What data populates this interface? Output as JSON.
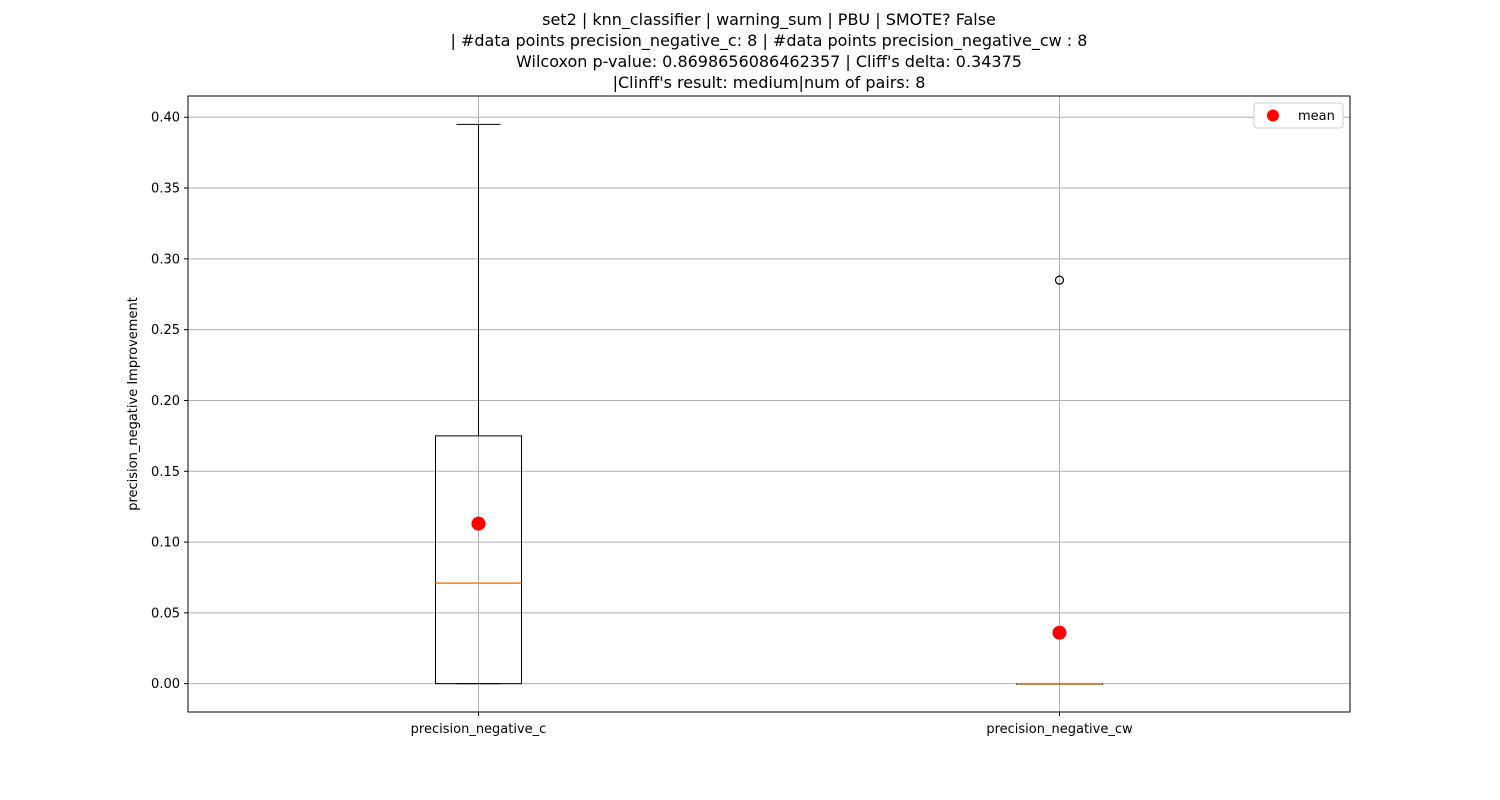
{
  "chart_data": {
    "type": "box",
    "title_lines": [
      "set2 | knn_classifier | warning_sum | PBU | SMOTE? False",
      "| #data points precision_negative_c: 8 | #data points precision_negative_cw : 8",
      "Wilcoxon p-value: 0.8698656086462357 | Cliff's delta: 0.34375",
      "|Clinff's result: medium|num of pairs: 8"
    ],
    "xlabel": "",
    "ylabel": "precision_negative Improvement",
    "ylim": [
      -0.02,
      0.415
    ],
    "yticks": [
      0.0,
      0.05,
      0.1,
      0.15,
      0.2,
      0.25,
      0.3,
      0.35,
      0.4
    ],
    "ytick_labels": [
      "0.00",
      "0.05",
      "0.10",
      "0.15",
      "0.20",
      "0.25",
      "0.30",
      "0.35",
      "0.40"
    ],
    "grid": true,
    "legend": {
      "position": "top-right",
      "entries": [
        "mean"
      ]
    },
    "categories": [
      "precision_negative_c",
      "precision_negative_cw"
    ],
    "boxes": [
      {
        "whisker_low": 0.0,
        "q1": 0.0,
        "median": 0.071,
        "q3": 0.175,
        "whisker_high": 0.395,
        "mean": 0.113,
        "outliers": []
      },
      {
        "whisker_low": 0.0,
        "q1": 0.0,
        "median": 0.0,
        "q3": 0.0,
        "whisker_high": 0.0,
        "mean": 0.036,
        "outliers": [
          0.285
        ]
      }
    ],
    "colors": {
      "box": "#000000",
      "median": "#ff7f0e",
      "mean": "#ff0000",
      "grid": "#b0b0b0"
    }
  }
}
